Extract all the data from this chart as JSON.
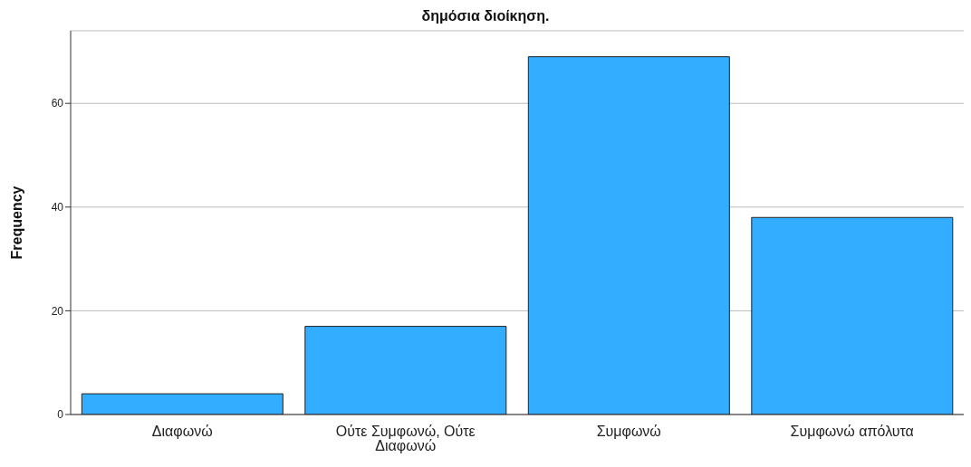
{
  "chart_data": {
    "type": "bar",
    "title": "δημόσια διοίκηση.",
    "ylabel": "Frequency",
    "categories": [
      "Διαφωνώ",
      "Ούτε Συμφωνώ, Ούτε Διαφωνώ",
      "Συμφωνώ",
      "Συμφωνώ απόλυτα"
    ],
    "values": [
      4,
      17,
      69,
      38
    ],
    "color": "#33adff",
    "ylim": [
      0,
      74
    ],
    "yticks": [
      0,
      20,
      40,
      60
    ],
    "grid": "y",
    "legend": false
  }
}
